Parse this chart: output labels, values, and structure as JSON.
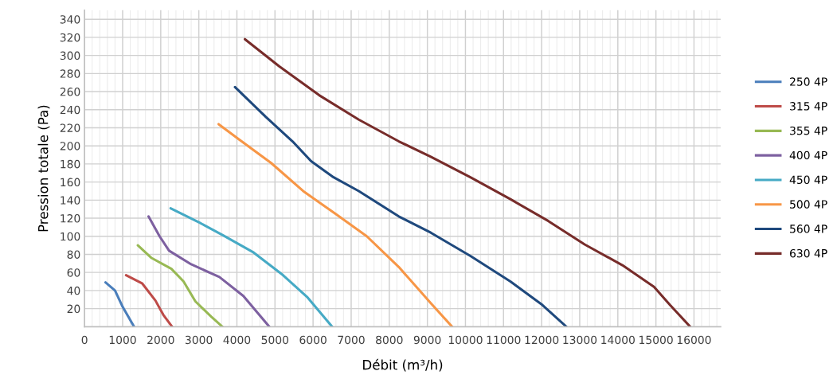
{
  "chart_data": {
    "type": "line",
    "xlabel": "Débit (m³/h)",
    "ylabel": "Pression totale (Pa)",
    "xlim": [
      0,
      16700
    ],
    "ylim": [
      0,
      350
    ],
    "xticks": [
      0,
      1000,
      2000,
      3000,
      4000,
      5000,
      6000,
      7000,
      8000,
      9000,
      10000,
      11000,
      12000,
      13000,
      14000,
      15000,
      16000
    ],
    "yticks": [
      20,
      40,
      60,
      80,
      100,
      120,
      140,
      160,
      180,
      200,
      220,
      240,
      260,
      280,
      300,
      320,
      340
    ],
    "grid": true,
    "legend": "right",
    "marker": "none",
    "line_style": "solid",
    "series": [
      {
        "name": "250 4P",
        "color": "#4a7ebb",
        "x": [
          550,
          800,
          1000,
          1300
        ],
        "values": [
          49,
          40,
          22,
          0
        ]
      },
      {
        "name": "315 4P",
        "color": "#be4b48",
        "x": [
          1090,
          1510,
          1860,
          2070,
          2300
        ],
        "values": [
          57,
          48,
          29,
          13,
          0
        ]
      },
      {
        "name": "355 4P",
        "color": "#98b954",
        "x": [
          1400,
          1760,
          2280,
          2600,
          2910,
          3330,
          3620
        ],
        "values": [
          90,
          76,
          64,
          50,
          28,
          11,
          0
        ]
      },
      {
        "name": "400 4P",
        "color": "#7d60a0",
        "x": [
          1680,
          1970,
          2220,
          2800,
          3540,
          4170,
          4850
        ],
        "values": [
          122,
          100,
          84,
          69,
          55,
          34,
          0
        ]
      },
      {
        "name": "450 4P",
        "color": "#46aac5",
        "x": [
          2260,
          3020,
          3640,
          4440,
          5210,
          5840,
          6500
        ],
        "values": [
          131,
          115,
          101,
          82,
          57,
          33,
          0
        ]
      },
      {
        "name": "500 4P",
        "color": "#f79646",
        "x": [
          3520,
          4060,
          4900,
          5740,
          6580,
          7410,
          8250,
          9090,
          9650
        ],
        "values": [
          224,
          207,
          181,
          150,
          125,
          100,
          66,
          26,
          0
        ]
      },
      {
        "name": "560 4P",
        "color": "#1f497d",
        "x": [
          3950,
          4760,
          5460,
          5950,
          6510,
          7200,
          8250,
          9090,
          10140,
          11180,
          12020,
          12650
        ],
        "values": [
          265,
          232,
          205,
          183,
          166,
          150,
          122,
          104,
          78,
          50,
          24,
          0
        ]
      },
      {
        "name": "630 4P",
        "color": "#772c2a",
        "x": [
          4210,
          5110,
          6160,
          7200,
          8250,
          9090,
          10140,
          11180,
          12170,
          13130,
          14120,
          14950,
          15370,
          15900
        ],
        "values": [
          318,
          288,
          256,
          229,
          205,
          188,
          165,
          141,
          117,
          91,
          68,
          44,
          24,
          0
        ]
      }
    ]
  }
}
